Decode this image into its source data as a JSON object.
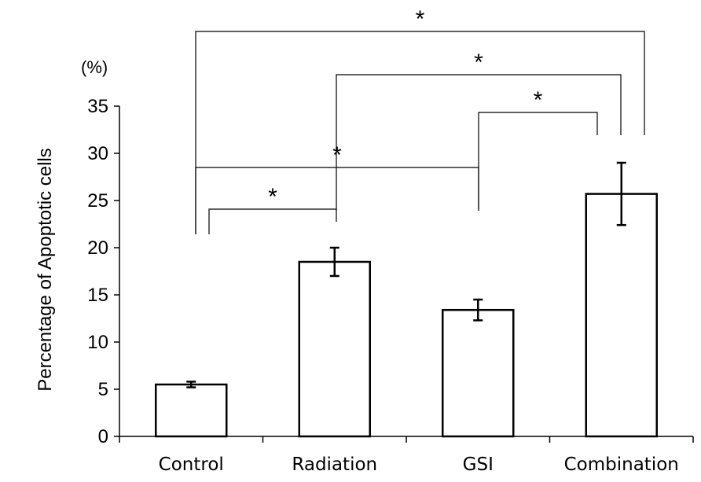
{
  "chart_data": {
    "type": "bar",
    "title": "",
    "xlabel": "",
    "ylabel": "Percentage of Apoptotic cells",
    "unit_label": "(%)",
    "ylim": [
      0,
      35
    ],
    "yticks": [
      0,
      5,
      10,
      15,
      20,
      25,
      30,
      35
    ],
    "grid": false,
    "categories": [
      "Control",
      "Radiation",
      "GSI",
      "Combination"
    ],
    "values": [
      5.5,
      18.5,
      13.4,
      25.7
    ],
    "errors": [
      0.3,
      1.5,
      1.1,
      3.3
    ],
    "significance": [
      {
        "from": 0,
        "to": 1,
        "label": "*"
      },
      {
        "from": 0,
        "to": 2,
        "label": "*"
      },
      {
        "from": 2,
        "to": 3,
        "label": "*"
      },
      {
        "from": 1,
        "to": 3,
        "label": "*"
      },
      {
        "from": 0,
        "to": 3,
        "label": "*"
      }
    ]
  }
}
